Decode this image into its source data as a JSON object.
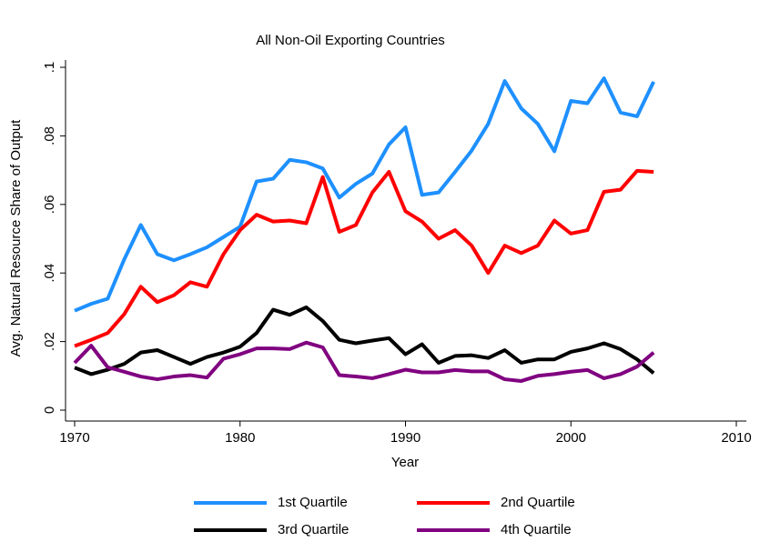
{
  "chart_data": {
    "type": "line",
    "title": "All Non-Oil Exporting Countries",
    "x_label": "Year",
    "y_label": "Avg. Natural Resource Share of Output",
    "x": [
      1970,
      1971,
      1972,
      1973,
      1974,
      1975,
      1976,
      1977,
      1978,
      1979,
      1980,
      1981,
      1982,
      1983,
      1984,
      1985,
      1986,
      1987,
      1988,
      1989,
      1990,
      1991,
      1992,
      1993,
      1994,
      1995,
      1996,
      1997,
      1998,
      1999,
      2000,
      2001,
      2002,
      2003,
      2004,
      2005
    ],
    "xlim": [
      1970,
      2010
    ],
    "xticks": [
      1970,
      1980,
      1990,
      2000,
      2010
    ],
    "ylim": [
      0,
      0.1
    ],
    "yticks": [
      0,
      {
        "value": 0.02,
        "label": ".02"
      },
      {
        "value": 0.04,
        "label": ".04"
      },
      {
        "value": 0.06,
        "label": ".06"
      },
      {
        "value": 0.08,
        "label": ".08"
      },
      {
        "value": 0.1,
        "label": ".1"
      }
    ],
    "grid": false,
    "legend": "bottom",
    "series": [
      {
        "name": "1st Quartile",
        "color": "#1e90ff",
        "values": [
          0.029,
          0.031,
          0.0325,
          0.044,
          0.054,
          0.0455,
          0.0437,
          0.0455,
          0.0475,
          0.0505,
          0.0535,
          0.0667,
          0.0675,
          0.073,
          0.0723,
          0.0705,
          0.062,
          0.066,
          0.069,
          0.0775,
          0.0825,
          0.0628,
          0.0635,
          0.0695,
          0.0757,
          0.0835,
          0.096,
          0.088,
          0.0835,
          0.0755,
          0.0902,
          0.0895,
          0.0968,
          0.0868,
          0.0857,
          0.0958
        ]
      },
      {
        "name": "2nd Quartile",
        "color": "#ff0000",
        "values": [
          0.0187,
          0.0205,
          0.0225,
          0.028,
          0.036,
          0.0315,
          0.0335,
          0.0373,
          0.036,
          0.0455,
          0.0525,
          0.057,
          0.055,
          0.0553,
          0.0545,
          0.068,
          0.052,
          0.054,
          0.0635,
          0.0695,
          0.058,
          0.055,
          0.05,
          0.0525,
          0.048,
          0.04,
          0.048,
          0.0458,
          0.048,
          0.0553,
          0.0515,
          0.0525,
          0.0637,
          0.0643,
          0.0698,
          0.0695
        ]
      },
      {
        "name": "3rd Quartile",
        "color": "#000000",
        "values": [
          0.0124,
          0.0105,
          0.0118,
          0.0135,
          0.0168,
          0.0175,
          0.0155,
          0.0135,
          0.0155,
          0.0168,
          0.0185,
          0.0225,
          0.0293,
          0.0278,
          0.03,
          0.026,
          0.0205,
          0.0195,
          0.0203,
          0.021,
          0.0163,
          0.0192,
          0.0138,
          0.0158,
          0.016,
          0.0152,
          0.0175,
          0.0138,
          0.0148,
          0.0148,
          0.017,
          0.018,
          0.0195,
          0.0178,
          0.0148,
          0.0108
        ]
      },
      {
        "name": "4th Quartile",
        "color": "#800080",
        "values": [
          0.0138,
          0.0188,
          0.0125,
          0.0112,
          0.0098,
          0.009,
          0.0098,
          0.0102,
          0.0095,
          0.015,
          0.0163,
          0.018,
          0.018,
          0.0178,
          0.0197,
          0.0183,
          0.0102,
          0.0098,
          0.0093,
          0.0105,
          0.0118,
          0.011,
          0.011,
          0.0117,
          0.0113,
          0.0113,
          0.009,
          0.0085,
          0.01,
          0.0105,
          0.0112,
          0.0117,
          0.0093,
          0.0105,
          0.0127,
          0.0168
        ]
      }
    ]
  }
}
